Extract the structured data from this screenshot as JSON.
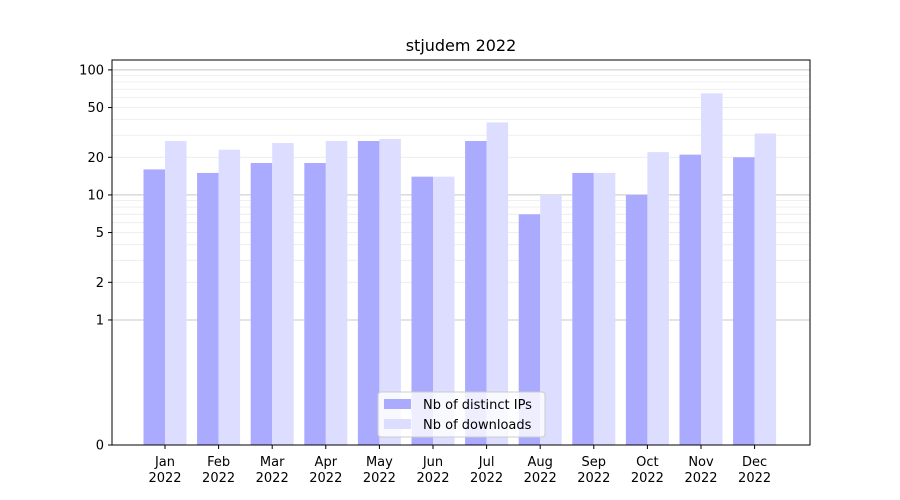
{
  "chart_data": {
    "type": "bar",
    "title": "stjudem 2022",
    "xlabel": "",
    "ylabel": "",
    "categories": [
      {
        "month": "Jan",
        "year": "2022"
      },
      {
        "month": "Feb",
        "year": "2022"
      },
      {
        "month": "Mar",
        "year": "2022"
      },
      {
        "month": "Apr",
        "year": "2022"
      },
      {
        "month": "May",
        "year": "2022"
      },
      {
        "month": "Jun",
        "year": "2022"
      },
      {
        "month": "Jul",
        "year": "2022"
      },
      {
        "month": "Aug",
        "year": "2022"
      },
      {
        "month": "Sep",
        "year": "2022"
      },
      {
        "month": "Oct",
        "year": "2022"
      },
      {
        "month": "Nov",
        "year": "2022"
      },
      {
        "month": "Dec",
        "year": "2022"
      }
    ],
    "series": [
      {
        "name": "Nb of distinct IPs",
        "color": "#aaaaff",
        "values": [
          16,
          15,
          18,
          18,
          27,
          14,
          27,
          7,
          15,
          10,
          21,
          20
        ]
      },
      {
        "name": "Nb of downloads",
        "color": "#ddddff",
        "values": [
          27,
          23,
          26,
          27,
          28,
          14,
          38,
          10,
          15,
          22,
          65,
          31
        ]
      }
    ],
    "y_scale": "symlog",
    "ylim": [
      0,
      120
    ],
    "yticks": [
      {
        "value": 0,
        "label": "0"
      },
      {
        "value": 1,
        "label": "1"
      },
      {
        "value": 2,
        "label": "2"
      },
      {
        "value": 5,
        "label": "5"
      },
      {
        "value": 10,
        "label": "10"
      },
      {
        "value": 20,
        "label": "20"
      },
      {
        "value": 50,
        "label": "50"
      },
      {
        "value": 100,
        "label": "100"
      }
    ],
    "major_gridlines": [
      1,
      10,
      100
    ],
    "minor_gridlines": [
      2,
      3,
      4,
      5,
      6,
      7,
      8,
      9,
      20,
      30,
      40,
      50,
      60,
      70,
      80,
      90
    ],
    "grid": true,
    "legend_position": "lower-center"
  }
}
